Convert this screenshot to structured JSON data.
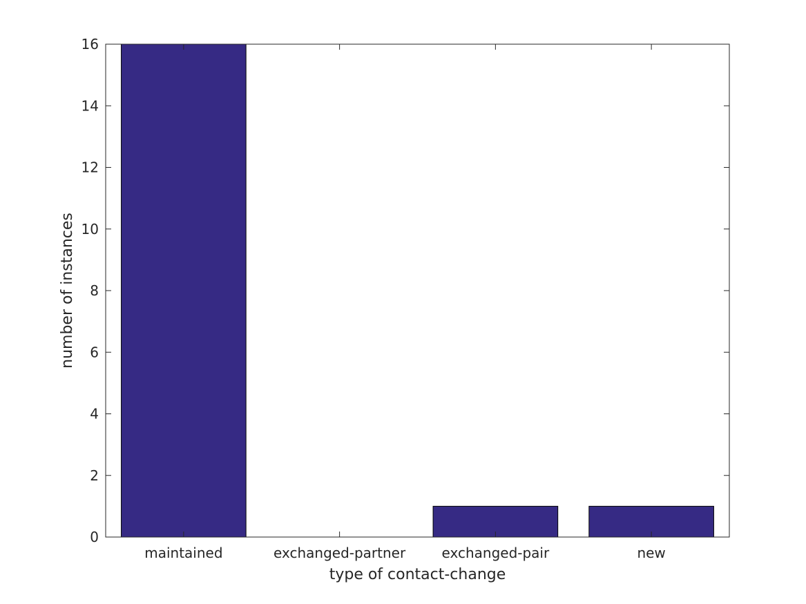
{
  "chart_data": {
    "type": "bar",
    "title": "",
    "xlabel": "type of contact-change",
    "ylabel": "number of instances",
    "categories": [
      "maintained",
      "exchanged-partner",
      "exchanged-pair",
      "new"
    ],
    "values": [
      16,
      0,
      1,
      1
    ],
    "ylim": [
      0,
      16
    ],
    "yticks": [
      0,
      2,
      4,
      6,
      8,
      10,
      12,
      14,
      16
    ],
    "bar_color": "#362A84",
    "bar_edge_color": "#000000",
    "grid": false,
    "legend": "none"
  }
}
